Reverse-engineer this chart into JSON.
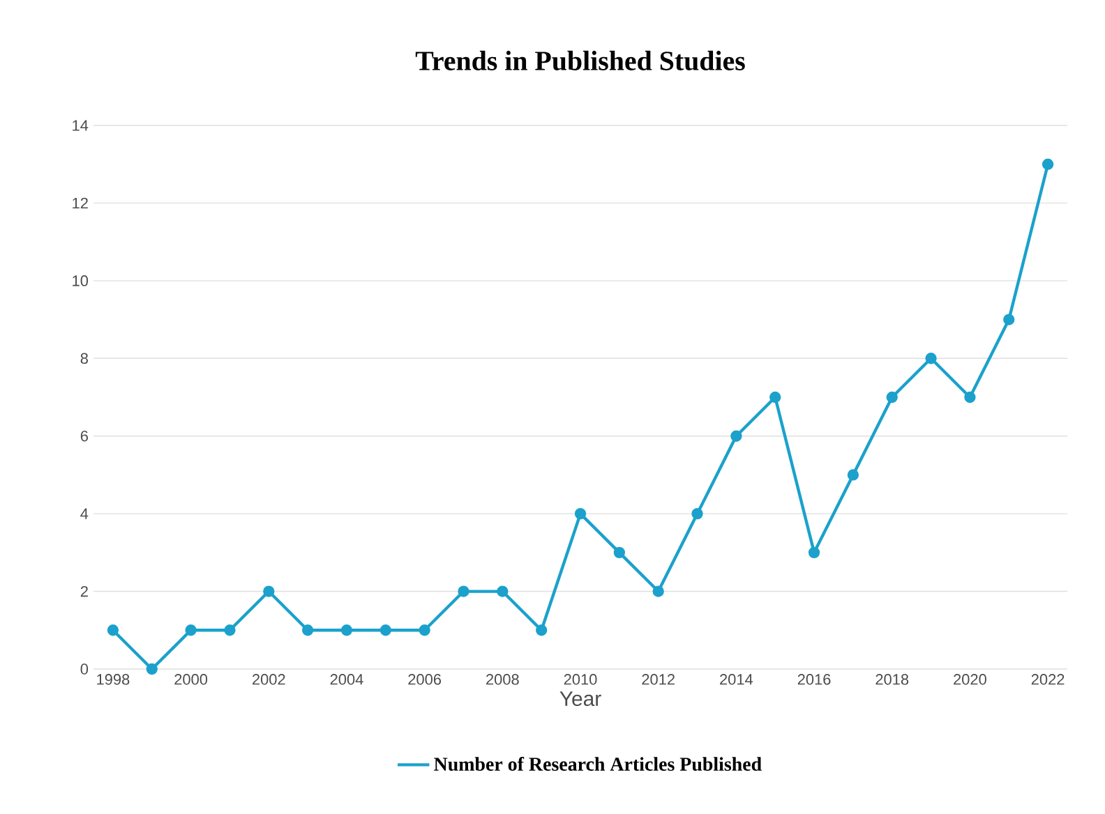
{
  "chart_data": {
    "type": "line",
    "title": "Trends in Published Studies",
    "xlabel": "Year",
    "x": [
      1998,
      1999,
      2000,
      2001,
      2002,
      2003,
      2004,
      2005,
      2006,
      2007,
      2008,
      2009,
      2010,
      2011,
      2012,
      2013,
      2014,
      2015,
      2016,
      2017,
      2018,
      2019,
      2020,
      2021,
      2022
    ],
    "series": [
      {
        "name": "Number of Research Articles Published",
        "color": "#1ba1cc",
        "values": [
          1,
          0,
          1,
          1,
          2,
          1,
          1,
          1,
          1,
          2,
          2,
          1,
          4,
          3,
          2,
          4,
          6,
          7,
          3,
          5,
          7,
          8,
          7,
          9,
          13
        ]
      }
    ],
    "xlim": [
      1997.5,
      2022.5
    ],
    "xticks": [
      1998,
      2000,
      2002,
      2004,
      2006,
      2008,
      2010,
      2012,
      2014,
      2016,
      2018,
      2020,
      2022
    ],
    "ylim": [
      0,
      14
    ],
    "yticks": [
      0,
      2,
      4,
      6,
      8,
      10,
      12,
      14
    ],
    "grid": "y",
    "legend": "bottom",
    "marker": "circle",
    "line_style": "solid"
  }
}
